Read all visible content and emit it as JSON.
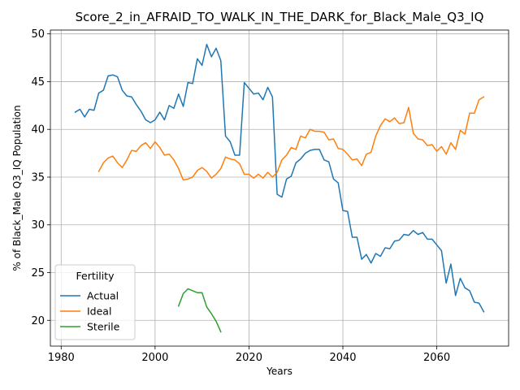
{
  "chart_data": {
    "type": "line",
    "title": "Score_2_in_AFRAID_TO_WALK_IN_THE_DARK_for_Black_Male_Q3_IQ",
    "xlabel": "Years",
    "ylabel": "% of Black_Male Q3_IQ Population",
    "xlim": [
      1977.7,
      2075.3
    ],
    "ylim": [
      17.3,
      50.4
    ],
    "xticks": [
      1980,
      2000,
      2020,
      2040,
      2060
    ],
    "yticks": [
      20,
      25,
      30,
      35,
      40,
      45,
      50
    ],
    "grid": true,
    "legend": {
      "title": "Fertility",
      "location": "lower-left"
    },
    "series": [
      {
        "name": "Actual",
        "color": "#1f77b4",
        "x": [
          1983,
          1984,
          1985,
          1986,
          1987,
          1988,
          1989,
          1990,
          1991,
          1992,
          1993,
          1994,
          1995,
          1996,
          1997,
          1998,
          1999,
          2000,
          2001,
          2002,
          2003,
          2004,
          2005,
          2006,
          2007,
          2008,
          2009,
          2010,
          2011,
          2012,
          2013,
          2014,
          2015,
          2016,
          2017,
          2018,
          2019,
          2020,
          2021,
          2022,
          2023,
          2024,
          2025,
          2026,
          2027,
          2028,
          2029,
          2030,
          2031,
          2032,
          2033,
          2034,
          2035,
          2036,
          2037,
          2038,
          2039,
          2040,
          2041,
          2042,
          2043,
          2044,
          2045,
          2046,
          2047,
          2048,
          2049,
          2050,
          2051,
          2052,
          2053,
          2054,
          2055,
          2056,
          2057,
          2058,
          2059,
          2060,
          2061,
          2062,
          2063,
          2064,
          2065,
          2066,
          2067,
          2068,
          2069,
          2070
        ],
        "values": [
          41.8,
          42.1,
          41.3,
          42.1,
          42.0,
          43.8,
          44.1,
          45.6,
          45.7,
          45.5,
          44.1,
          43.5,
          43.4,
          42.6,
          41.9,
          41.0,
          40.7,
          41.0,
          41.8,
          41.0,
          42.5,
          42.2,
          43.7,
          42.4,
          44.9,
          44.8,
          47.4,
          46.7,
          48.9,
          47.6,
          48.5,
          47.2,
          39.3,
          38.7,
          37.3,
          37.3,
          44.9,
          44.3,
          43.7,
          43.8,
          43.1,
          44.4,
          43.4,
          33.2,
          32.9,
          34.8,
          35.1,
          36.5,
          36.9,
          37.5,
          37.8,
          37.9,
          37.9,
          36.8,
          36.6,
          34.8,
          34.4,
          31.5,
          31.4,
          28.7,
          28.7,
          26.4,
          26.9,
          26.0,
          27.0,
          26.7,
          27.6,
          27.5,
          28.3,
          28.4,
          29.0,
          28.9,
          29.4,
          29.0,
          29.2,
          28.5,
          28.5,
          27.9,
          27.3,
          23.9,
          25.9,
          22.6,
          24.4,
          23.4,
          23.1,
          21.9,
          21.8,
          20.9
        ]
      },
      {
        "name": "Ideal",
        "color": "#ff7f0e",
        "x": [
          1988,
          1989,
          1990,
          1991,
          1992,
          1993,
          1994,
          1995,
          1996,
          1997,
          1998,
          1999,
          2000,
          2001,
          2002,
          2003,
          2004,
          2005,
          2006,
          2007,
          2008,
          2009,
          2010,
          2011,
          2012,
          2013,
          2014,
          2015,
          2016,
          2017,
          2018,
          2019,
          2020,
          2021,
          2022,
          2023,
          2024,
          2025,
          2026,
          2027,
          2028,
          2029,
          2030,
          2031,
          2032,
          2033,
          2034,
          2035,
          2036,
          2037,
          2038,
          2039,
          2040,
          2041,
          2042,
          2043,
          2044,
          2045,
          2046,
          2047,
          2048,
          2049,
          2050,
          2051,
          2052,
          2053,
          2054,
          2055,
          2056,
          2057,
          2058,
          2059,
          2060,
          2061,
          2062,
          2063,
          2064,
          2065,
          2066,
          2067,
          2068,
          2069,
          2070
        ],
        "values": [
          35.6,
          36.5,
          37.0,
          37.2,
          36.5,
          36.0,
          36.8,
          37.8,
          37.7,
          38.3,
          38.6,
          38.0,
          38.7,
          38.1,
          37.3,
          37.4,
          36.8,
          35.9,
          34.7,
          34.8,
          35.0,
          35.7,
          36.0,
          35.6,
          34.9,
          35.3,
          35.9,
          37.1,
          36.9,
          36.8,
          36.4,
          35.3,
          35.3,
          34.9,
          35.3,
          34.9,
          35.5,
          35.0,
          35.5,
          36.8,
          37.3,
          38.1,
          37.9,
          39.3,
          39.1,
          40.0,
          39.8,
          39.8,
          39.7,
          38.9,
          39.0,
          38.0,
          37.9,
          37.4,
          36.8,
          36.9,
          36.2,
          37.4,
          37.6,
          39.3,
          40.4,
          41.1,
          40.8,
          41.2,
          40.6,
          40.7,
          42.3,
          39.6,
          39.0,
          38.9,
          38.3,
          38.4,
          37.7,
          38.2,
          37.4,
          38.6,
          37.9,
          39.9,
          39.5,
          41.7,
          41.7,
          43.1,
          43.4
        ]
      },
      {
        "name": "Sterile",
        "color": "#2ca02c",
        "x": [
          2005,
          2006,
          2007,
          2008,
          2009,
          2010,
          2011,
          2012,
          2013,
          2014
        ],
        "values": [
          21.5,
          22.8,
          23.3,
          23.1,
          22.9,
          22.9,
          21.4,
          20.7,
          19.9,
          18.8
        ]
      }
    ]
  }
}
